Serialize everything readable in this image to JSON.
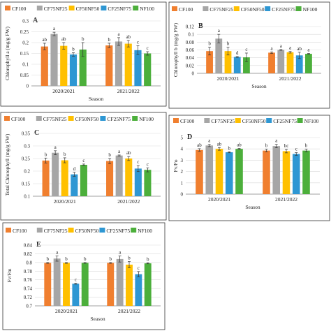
{
  "legend": [
    "CF100",
    "CF75NF25",
    "CF50NF50",
    "CF25NF75",
    "NF100"
  ],
  "colors": [
    "#f07f2f",
    "#a6a6a6",
    "#ffc000",
    "#2e97d3",
    "#4caf3b"
  ],
  "chart_data": [
    {
      "panel": "A",
      "type": "bar",
      "ylabel": "Chlorophyll a (mg/g FW)",
      "xlabel": "Season",
      "categories": [
        "2020/2021",
        "2021/2022"
      ],
      "ylim": [
        0,
        0.3
      ],
      "yticks": [
        0,
        0.05,
        0.1,
        0.15,
        0.2,
        0.25,
        0.3
      ],
      "yticklabels": [
        "0",
        "0.05",
        "0.1",
        "0.15",
        "0.2",
        "0.25",
        "0.3"
      ],
      "series": [
        {
          "name": "CF100",
          "values": [
            0.182,
            0.187
          ],
          "err": [
            0.015,
            0.01
          ],
          "labels": [
            "ab",
            "b"
          ]
        },
        {
          "name": "CF75NF25",
          "values": [
            0.24,
            0.205
          ],
          "err": [
            0.008,
            0.018
          ],
          "labels": [
            "a",
            "a"
          ]
        },
        {
          "name": "CF50NF50",
          "values": [
            0.185,
            0.195
          ],
          "err": [
            0.015,
            0.015
          ],
          "labels": [
            "ab",
            "ab"
          ]
        },
        {
          "name": "CF25NF75",
          "values": [
            0.145,
            0.165
          ],
          "err": [
            0.008,
            0.02
          ],
          "labels": [
            "b",
            "c"
          ]
        },
        {
          "name": "NF100",
          "values": [
            0.168,
            0.15
          ],
          "err": [
            0.032,
            0.008
          ],
          "labels": [
            "b",
            "c"
          ]
        }
      ]
    },
    {
      "panel": "B",
      "type": "bar",
      "ylabel": "Chlorophyll b (mg/g FW)",
      "xlabel": "Season",
      "categories": [
        "2020/2021",
        "2021/2022"
      ],
      "ylim": [
        0,
        0.12
      ],
      "yticks": [
        0,
        0.02,
        0.04,
        0.06,
        0.08,
        0.1,
        0.12
      ],
      "yticklabels": [
        "0",
        "0.02",
        "0.04",
        "0.06",
        "0.08",
        "0.1",
        "0.12"
      ],
      "series": [
        {
          "name": "CF100",
          "values": [
            0.057,
            0.053
          ],
          "err": [
            0.01,
            0.002
          ],
          "labels": [
            "b",
            "a"
          ]
        },
        {
          "name": "CF75NF25",
          "values": [
            0.089,
            0.06
          ],
          "err": [
            0.011,
            0.001
          ],
          "labels": [
            "a",
            "a"
          ]
        },
        {
          "name": "CF50NF50",
          "values": [
            0.057,
            0.054
          ],
          "err": [
            0.01,
            0.002
          ],
          "labels": [
            "b",
            "a"
          ]
        },
        {
          "name": "CF25NF75",
          "values": [
            0.042,
            0.046
          ],
          "err": [
            0.001,
            0.008
          ],
          "labels": [
            "d",
            "ab"
          ]
        },
        {
          "name": "NF100",
          "values": [
            0.041,
            0.05
          ],
          "err": [
            0.011,
            0.001
          ],
          "labels": [
            "c",
            "a"
          ]
        }
      ]
    },
    {
      "panel": "C",
      "type": "bar",
      "ylabel": "Total Chlorophyll (mg/g FW)",
      "xlabel": "",
      "categories": [
        "2020/2021",
        "2021/2022"
      ],
      "ylim": [
        0.1,
        0.35
      ],
      "yticks": [
        0.1,
        0.15,
        0.2,
        0.25,
        0.3,
        0.35
      ],
      "yticklabels": [
        "0.1",
        "0.15",
        "0.2",
        "0.25",
        "0.3",
        "0.35"
      ],
      "series": [
        {
          "name": "CF100",
          "values": [
            0.242,
            0.24
          ],
          "err": [
            0.01,
            0.01
          ],
          "labels": [
            "b",
            "b"
          ]
        },
        {
          "name": "CF75NF25",
          "values": [
            0.273,
            0.262
          ],
          "err": [
            0.008,
            0.002
          ],
          "labels": [
            "a",
            "a"
          ]
        },
        {
          "name": "CF50NF50",
          "values": [
            0.243,
            0.25
          ],
          "err": [
            0.01,
            0.008
          ],
          "labels": [
            "b",
            "ab"
          ]
        },
        {
          "name": "CF25NF75",
          "values": [
            0.187,
            0.21
          ],
          "err": [
            0.008,
            0.012
          ],
          "labels": [
            "d",
            "c"
          ]
        },
        {
          "name": "NF100",
          "values": [
            0.225,
            0.205
          ],
          "err": [
            0.003,
            0.008
          ],
          "labels": [
            "c",
            "c"
          ]
        }
      ]
    },
    {
      "panel": "D",
      "type": "bar",
      "ylabel": "Fv/Fo",
      "xlabel": "Season",
      "categories": [
        "2020/2021",
        "2021/2022"
      ],
      "ylim": [
        0,
        5
      ],
      "yticks": [
        0,
        1,
        2,
        3,
        4,
        5
      ],
      "yticklabels": [
        "0",
        "1",
        "2",
        "3",
        "4",
        "5"
      ],
      "series": [
        {
          "name": "CF100",
          "values": [
            3.9,
            3.85
          ],
          "err": [
            0.12,
            0.12
          ],
          "labels": [
            "ab",
            "b"
          ]
        },
        {
          "name": "CF75NF25",
          "values": [
            4.3,
            4.25
          ],
          "err": [
            0.1,
            0.15
          ],
          "labels": [
            "a",
            "a"
          ]
        },
        {
          "name": "CF50NF50",
          "values": [
            4.0,
            3.8
          ],
          "err": [
            0.12,
            0.15
          ],
          "labels": [
            "ab",
            "bc"
          ]
        },
        {
          "name": "CF25NF75",
          "values": [
            3.7,
            3.55
          ],
          "err": [
            0.04,
            0.12
          ],
          "labels": [
            "b",
            "c"
          ]
        },
        {
          "name": "NF100",
          "values": [
            4.0,
            3.85
          ],
          "err": [
            0.04,
            0.12
          ],
          "labels": [
            "ab",
            "b"
          ]
        }
      ]
    },
    {
      "panel": "E",
      "type": "bar",
      "ylabel": "Fv/Fm",
      "xlabel": "Season",
      "categories": [
        "2020/2021",
        "2021/2022"
      ],
      "ylim": [
        0.7,
        0.84
      ],
      "yticks": [
        0.7,
        0.72,
        0.74,
        0.76,
        0.78,
        0.8,
        0.82,
        0.84
      ],
      "yticklabels": [
        "0.7",
        "0.72",
        "0.74",
        "0.76",
        "0.78",
        "0.8",
        "0.82",
        "0.84"
      ],
      "series": [
        {
          "name": "CF100",
          "values": [
            0.799,
            0.799
          ],
          "err": [
            0.001,
            0.001
          ],
          "labels": [
            "b",
            "b"
          ]
        },
        {
          "name": "CF75NF25",
          "values": [
            0.809,
            0.808
          ],
          "err": [
            0.006,
            0.007
          ],
          "labels": [
            "a",
            "a"
          ]
        },
        {
          "name": "CF50NF50",
          "values": [
            0.799,
            0.795
          ],
          "err": [
            0.001,
            0.007
          ],
          "labels": [
            "b",
            "b"
          ]
        },
        {
          "name": "CF25NF75",
          "values": [
            0.751,
            0.773
          ],
          "err": [
            0.001,
            0.006
          ],
          "labels": [
            "c",
            "c"
          ]
        },
        {
          "name": "NF100",
          "values": [
            0.799,
            0.798
          ],
          "err": [
            0.001,
            0.001
          ],
          "labels": [
            "b",
            "b"
          ]
        }
      ]
    }
  ]
}
